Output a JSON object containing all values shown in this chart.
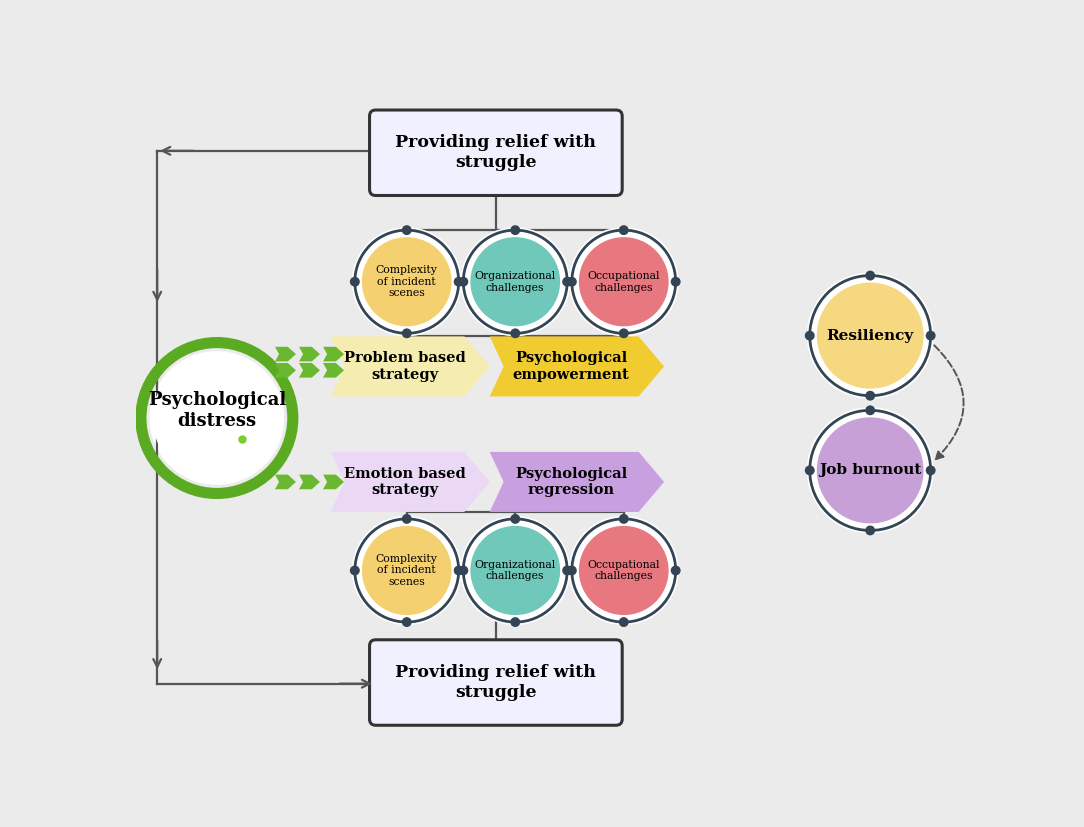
{
  "bg_color": "#ebebeb",
  "psych_distress_text": "Psychological\ndistress",
  "psych_distress_ring_color": "#5aaa22",
  "psych_distress_dot_color": "#7acc30",
  "top_box_text": "Providing relief with\nstruggle",
  "bottom_box_text": "Providing relief with\nstruggle",
  "box_bg": "#f0f0ff",
  "box_border": "#333333",
  "top_circles": [
    {
      "label": "Complexity\nof incident\nscenes",
      "color": "#f5d070",
      "border": "#334455"
    },
    {
      "label": "Organizational\nchallenges",
      "color": "#70c8ba",
      "border": "#334455"
    },
    {
      "label": "Occupational\nchallenges",
      "color": "#e87880",
      "border": "#334455"
    }
  ],
  "bottom_circles": [
    {
      "label": "Complexity\nof incident\nscenes",
      "color": "#f5d070",
      "border": "#334455"
    },
    {
      "label": "Organizational\nchallenges",
      "color": "#70c8ba",
      "border": "#334455"
    },
    {
      "label": "Occupational\nchallenges",
      "color": "#e87880",
      "border": "#334455"
    }
  ],
  "problem_strategy_text": "Problem based\nstrategy",
  "problem_outcome_text": "Psychological\nempowerment",
  "problem_arrow_light": "#f5ecb0",
  "problem_arrow_dark": "#f0cc30",
  "emotion_strategy_text": "Emotion based\nstrategy",
  "emotion_outcome_text": "Psychological\nregression",
  "emotion_arrow_light": "#ead8f5",
  "emotion_arrow_dark": "#c8a0e0",
  "green_color": "#6ab830",
  "resiliency_text": "Resiliency",
  "resiliency_color": "#f5d880",
  "burnout_text": "Job burnout",
  "burnout_color": "#c8a0d8",
  "node_border": "#334455",
  "conn_color": "#555555",
  "dashed_color": "#555555"
}
